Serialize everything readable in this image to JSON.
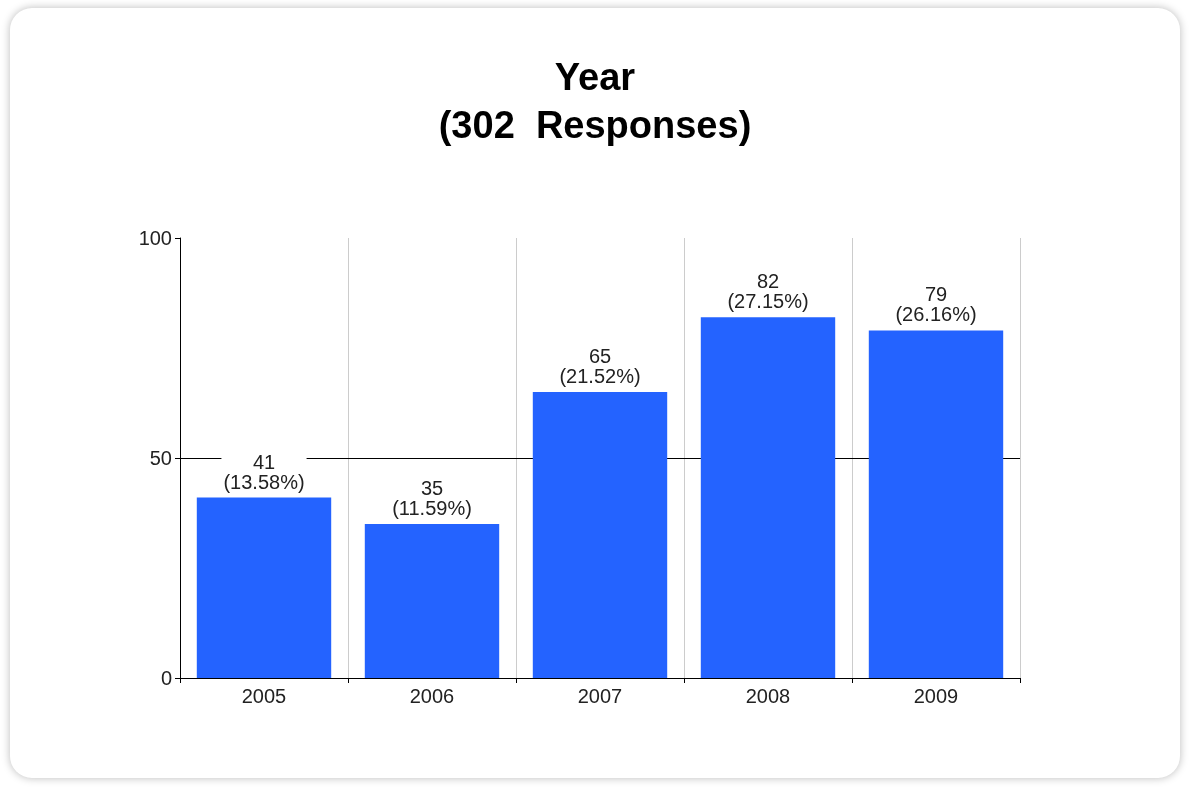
{
  "chart_data": {
    "type": "bar",
    "title": "Year",
    "subtitle": "(302  Responses)",
    "categories": [
      "2005",
      "2006",
      "2007",
      "2008",
      "2009"
    ],
    "values": [
      41,
      35,
      65,
      82,
      79
    ],
    "color": "#2463ff",
    "value_labels": [
      "41\n(13.58%)",
      "35\n(11.59%)",
      "65\n(21.52%)",
      "82\n(27.15%)",
      "79\n(26.16%)"
    ],
    "ylim": [
      0,
      100
    ],
    "yticks": [
      0,
      50,
      100
    ],
    "grid": "x",
    "ref_lines": [
      {
        "axis": "y",
        "value": 50,
        "color": "#000000"
      }
    ]
  }
}
